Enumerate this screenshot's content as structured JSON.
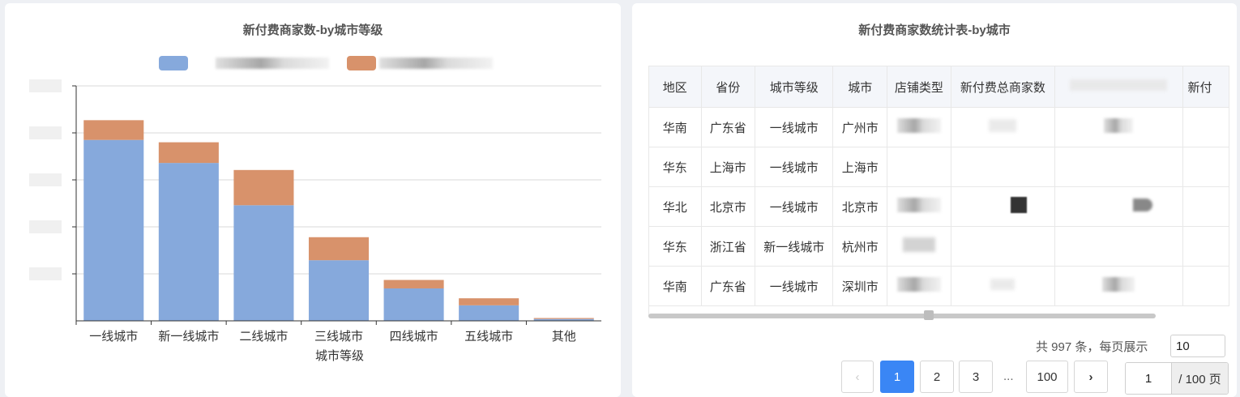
{
  "left_panel": {
    "title": "新付费商家数-by城市等级"
  },
  "right_panel": {
    "title": "新付费商家数统计表-by城市",
    "table": {
      "headers": [
        "地区",
        "省份",
        "城市等级",
        "城市",
        "店铺类型",
        "新付费总商家数",
        "",
        "新付"
      ],
      "rows": [
        [
          "华南",
          "广东省",
          "一线城市",
          "广州市"
        ],
        [
          "华东",
          "上海市",
          "一线城市",
          "上海市"
        ],
        [
          "华北",
          "北京市",
          "一线城市",
          "北京市"
        ],
        [
          "华东",
          "浙江省",
          "新一线城市",
          "杭州市"
        ],
        [
          "华南",
          "广东省",
          "一线城市",
          "深圳市"
        ]
      ]
    },
    "pagination": {
      "total_text": "共 997 条，每页展示",
      "page_size": "10",
      "pages": [
        "1",
        "2",
        "3",
        "100"
      ],
      "ellipsis": "...",
      "prev_icon": "‹",
      "next_icon": "›",
      "current_page": "1",
      "jump_value": "1",
      "jump_suffix": "/ 100 页"
    }
  },
  "colors": {
    "series_blue": "#86a9dc",
    "series_orange": "#d8926b",
    "accent": "#3a86f5"
  },
  "chart_data": {
    "type": "bar",
    "stacked": true,
    "title": "新付费商家数-by城市等级",
    "xlabel": "城市等级",
    "ylabel": "",
    "categories": [
      "一线城市",
      "新一线城市",
      "二线城市",
      "三线城市",
      "四线城市",
      "五线城市",
      "其他"
    ],
    "series": [
      {
        "color": "#86a9dc",
        "values": [
          385,
          336,
          246,
          129,
          69,
          33,
          4
        ]
      },
      {
        "color": "#d8926b",
        "values": [
          42,
          44,
          75,
          49,
          18,
          15,
          2
        ]
      }
    ],
    "ylim": [
      0,
      500
    ],
    "grid": true,
    "legend_position": "top"
  }
}
